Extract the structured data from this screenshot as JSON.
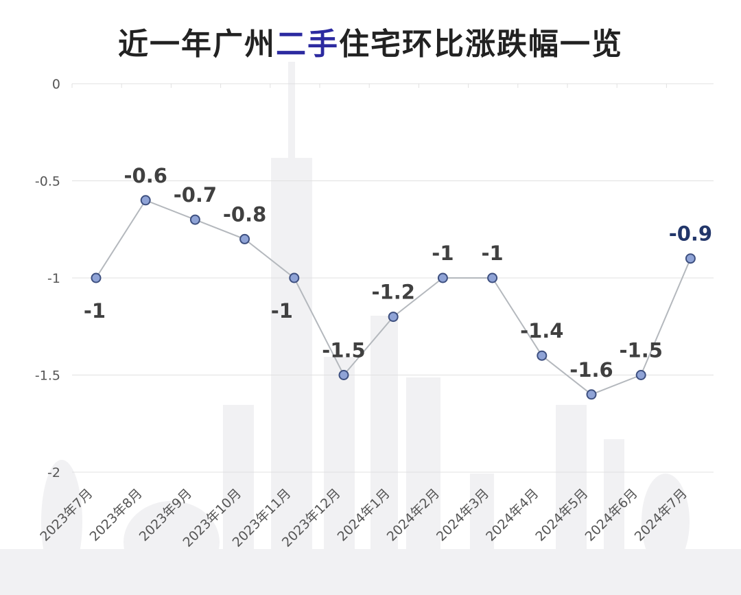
{
  "title": {
    "prefix": "近一年广州",
    "highlight": "二手",
    "suffix": "住宅环比涨跌幅一览"
  },
  "colors": {
    "title_text": "#222222",
    "title_accent": "#2c2aa0",
    "line": "#b4b8bd",
    "marker_fill": "#8fa3d6",
    "marker_stroke": "#3d4f7f",
    "label": "#404040",
    "last_label": "#22366a",
    "grid": "#e0e0e0",
    "tick": "#555555"
  },
  "chart_data": {
    "type": "line",
    "title": "近一年广州二手住宅环比涨跌幅一览",
    "xlabel": "",
    "ylabel": "",
    "ylim": [
      -2,
      0
    ],
    "yticks": [
      0,
      -0.5,
      -1,
      -1.5,
      -2
    ],
    "grid": true,
    "legend": "none",
    "categories": [
      "2023年7月",
      "2023年8月",
      "2023年9月",
      "2023年10月",
      "2023年11月",
      "2023年12月",
      "2024年1月",
      "2024年2月",
      "2024年3月",
      "2024年4月",
      "2024年5月",
      "2024年6月",
      "2024年7月"
    ],
    "series": [
      {
        "values": [
          -1,
          -0.6,
          -0.7,
          -0.8,
          -1,
          -1.5,
          -1.2,
          -1,
          -1,
          -1.4,
          -1.6,
          -1.5,
          -0.9
        ]
      }
    ]
  }
}
